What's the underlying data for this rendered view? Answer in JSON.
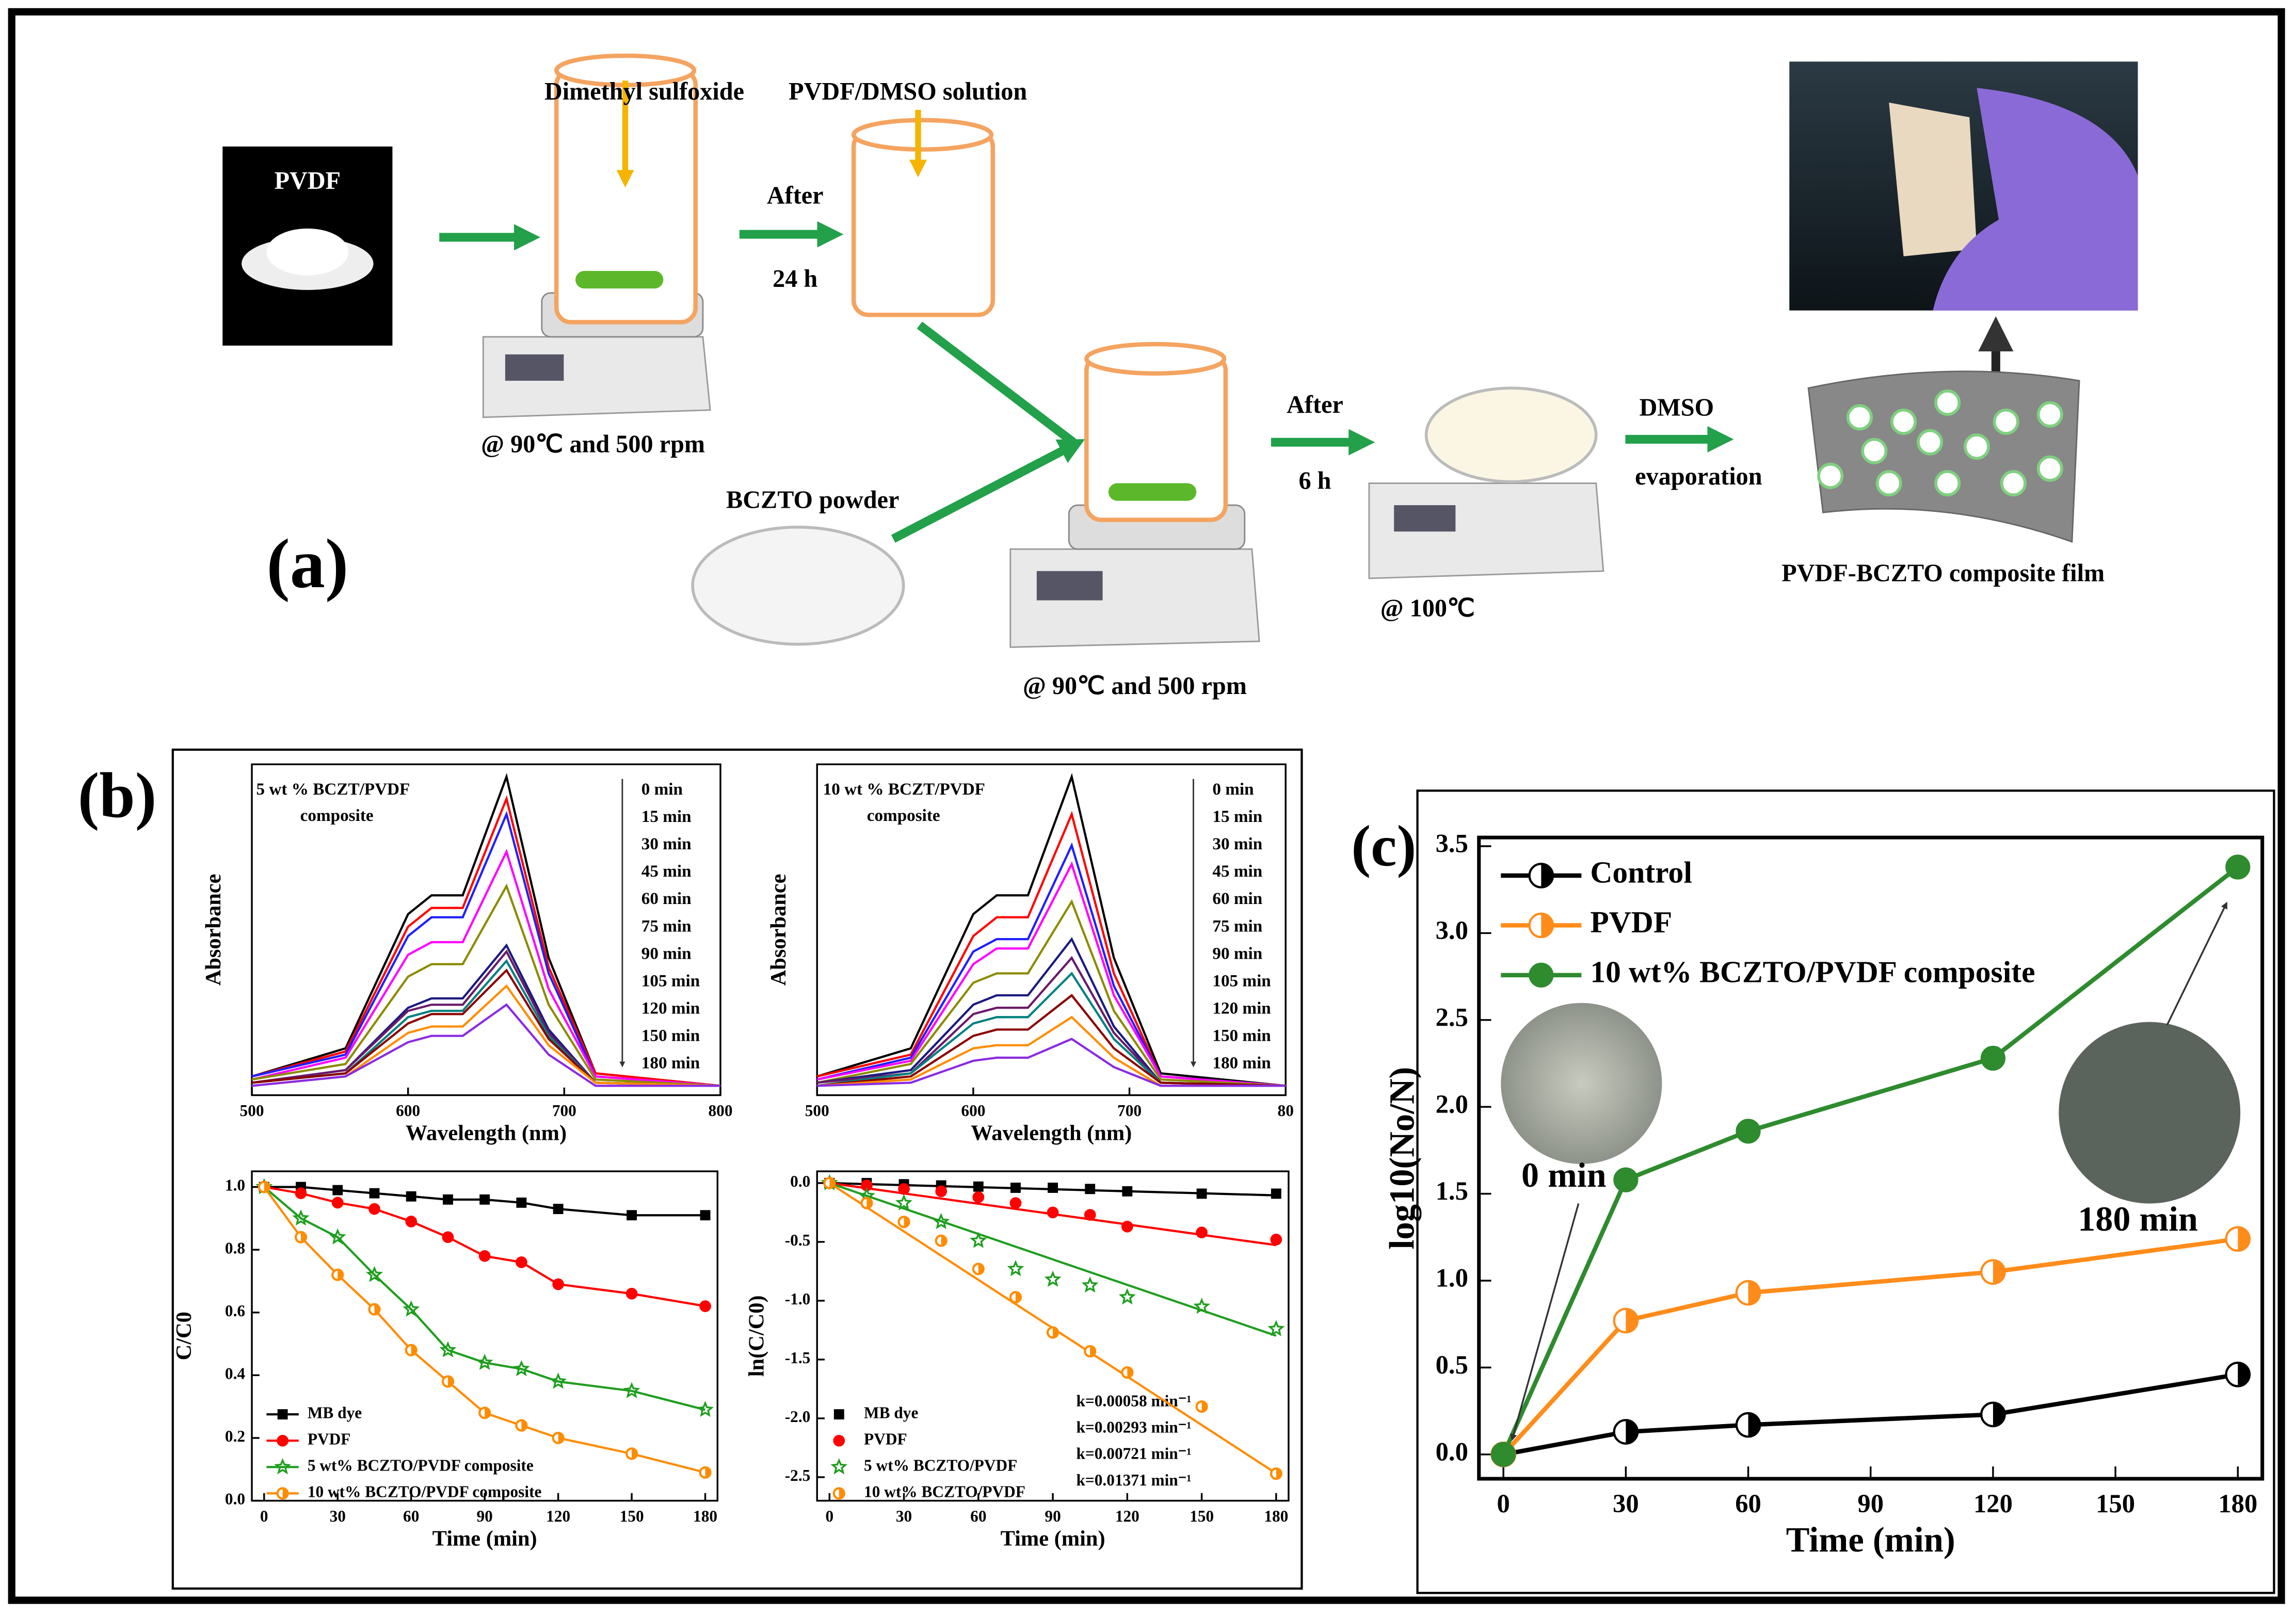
{
  "diagram": {
    "panel_label": "(a)",
    "pvdf": "PVDF",
    "solvent": "Dimethyl sulfoxide",
    "solution": "PVDF/DMSO solution",
    "after_1": "After",
    "time_1": "24 h",
    "condition_1": "@ 90℃ and 500 rpm",
    "powder": "BCZTO powder",
    "condition_2": "@ 90℃ and 500 rpm",
    "after_2": "After",
    "time_2": "6 h",
    "condition_3": "@ 100℃",
    "dmso": "DMSO",
    "evaporation": "evaporation",
    "film": "PVDF-BCZTO composite film"
  },
  "panel_b_label": "(b)",
  "chart_data": [
    {
      "type": "line",
      "annotation": [
        "5 wt % BCZT/PVDF",
        "composite"
      ],
      "xlabel": "Wavelength (nm)",
      "ylabel": "Absorbance",
      "x": [
        500,
        560,
        600,
        615,
        635,
        663,
        690,
        720,
        800
      ],
      "xlim": [
        500,
        800
      ],
      "xticks": [
        500,
        600,
        700,
        800
      ],
      "ylim": [
        -0.02,
        1.04
      ],
      "legend": "list",
      "series": [
        {
          "name": "0 min",
          "color": "#000000",
          "values": [
            0.04,
            0.13,
            0.56,
            0.62,
            0.62,
            1.0,
            0.42,
            0.05,
            0.01
          ]
        },
        {
          "name": "15 min",
          "color": "#ff0000",
          "values": [
            0.04,
            0.12,
            0.52,
            0.58,
            0.58,
            0.93,
            0.39,
            0.05,
            0.01
          ]
        },
        {
          "name": "30 min",
          "color": "#1f1fff",
          "values": [
            0.04,
            0.11,
            0.49,
            0.55,
            0.55,
            0.88,
            0.37,
            0.04,
            0.01
          ]
        },
        {
          "name": "45 min",
          "color": "#ff00ff",
          "values": [
            0.03,
            0.1,
            0.43,
            0.47,
            0.47,
            0.76,
            0.32,
            0.04,
            0.01
          ]
        },
        {
          "name": "60 min",
          "color": "#8b8b00",
          "values": [
            0.03,
            0.08,
            0.36,
            0.4,
            0.4,
            0.65,
            0.27,
            0.03,
            0.01
          ]
        },
        {
          "name": "75 min",
          "color": "#1a1a80",
          "values": [
            0.02,
            0.06,
            0.26,
            0.29,
            0.29,
            0.46,
            0.19,
            0.02,
            0.01
          ]
        },
        {
          "name": "90 min",
          "color": "#6a1a6a",
          "values": [
            0.02,
            0.06,
            0.25,
            0.27,
            0.27,
            0.44,
            0.18,
            0.02,
            0.01
          ]
        },
        {
          "name": "105 min",
          "color": "#008080",
          "values": [
            0.02,
            0.05,
            0.23,
            0.25,
            0.25,
            0.41,
            0.17,
            0.02,
            0.01
          ]
        },
        {
          "name": "120 min",
          "color": "#8b0000",
          "values": [
            0.02,
            0.05,
            0.21,
            0.24,
            0.24,
            0.38,
            0.16,
            0.02,
            0.01
          ]
        },
        {
          "name": "150 min",
          "color": "#ff8c00",
          "values": [
            0.01,
            0.04,
            0.18,
            0.2,
            0.2,
            0.33,
            0.14,
            0.02,
            0.01
          ]
        },
        {
          "name": "180 min",
          "color": "#8a2be2",
          "values": [
            0.01,
            0.04,
            0.15,
            0.17,
            0.17,
            0.27,
            0.11,
            0.01,
            0.01
          ]
        }
      ]
    },
    {
      "type": "line",
      "annotation": [
        "10 wt % BCZT/PVDF",
        "composite"
      ],
      "xlabel": "Wavelength (nm)",
      "ylabel": "Absorbance",
      "x": [
        500,
        560,
        600,
        615,
        635,
        663,
        690,
        720,
        800
      ],
      "xlim": [
        500,
        800
      ],
      "xticks": [
        500,
        600,
        700,
        {
          "value": 800,
          "label": "80"
        }
      ],
      "ylim": [
        -0.02,
        1.04
      ],
      "legend": "list",
      "series": [
        {
          "name": "0 min",
          "color": "#000000",
          "values": [
            0.04,
            0.13,
            0.56,
            0.62,
            0.62,
            1.0,
            0.42,
            0.05,
            0.01
          ]
        },
        {
          "name": "15 min",
          "color": "#ff0000",
          "values": [
            0.04,
            0.11,
            0.49,
            0.55,
            0.55,
            0.88,
            0.37,
            0.04,
            0.01
          ]
        },
        {
          "name": "30 min",
          "color": "#1f1fff",
          "values": [
            0.03,
            0.1,
            0.44,
            0.48,
            0.48,
            0.78,
            0.33,
            0.04,
            0.01
          ]
        },
        {
          "name": "45 min",
          "color": "#ff00ff",
          "values": [
            0.03,
            0.09,
            0.4,
            0.45,
            0.45,
            0.72,
            0.3,
            0.04,
            0.01
          ]
        },
        {
          "name": "60 min",
          "color": "#8b8b00",
          "values": [
            0.02,
            0.08,
            0.34,
            0.37,
            0.37,
            0.6,
            0.25,
            0.03,
            0.01
          ]
        },
        {
          "name": "75 min",
          "color": "#1a1a80",
          "values": [
            0.02,
            0.06,
            0.27,
            0.3,
            0.3,
            0.48,
            0.2,
            0.02,
            0.01
          ]
        },
        {
          "name": "90 min",
          "color": "#6a1a6a",
          "values": [
            0.02,
            0.05,
            0.24,
            0.26,
            0.26,
            0.42,
            0.18,
            0.02,
            0.01
          ]
        },
        {
          "name": "105 min",
          "color": "#008080",
          "values": [
            0.01,
            0.05,
            0.21,
            0.23,
            0.23,
            0.37,
            0.16,
            0.02,
            0.01
          ]
        },
        {
          "name": "120 min",
          "color": "#8b0000",
          "values": [
            0.01,
            0.04,
            0.17,
            0.19,
            0.19,
            0.3,
            0.13,
            0.02,
            0.01
          ]
        },
        {
          "name": "150 min",
          "color": "#ff8c00",
          "values": [
            0.01,
            0.03,
            0.13,
            0.14,
            0.14,
            0.23,
            0.1,
            0.01,
            0.01
          ]
        },
        {
          "name": "180 min",
          "color": "#8a2be2",
          "values": [
            0.01,
            0.02,
            0.09,
            0.1,
            0.1,
            0.16,
            0.07,
            0.01,
            0.01
          ]
        }
      ]
    },
    {
      "type": "line",
      "xlabel": "Time (min)",
      "ylabel": "C/C0",
      "x": [
        0,
        15,
        30,
        45,
        60,
        75,
        90,
        105,
        120,
        150,
        180
      ],
      "xlim": [
        -5,
        185
      ],
      "xticks": [
        0,
        30,
        60,
        90,
        120,
        150,
        180
      ],
      "ylim": [
        0,
        1.05
      ],
      "yticks": [
        {
          "value": 0,
          "label": "0.0"
        },
        0.2,
        0.4,
        0.6,
        0.8,
        {
          "value": 1,
          "label": "1.0"
        }
      ],
      "legend": "lower left",
      "series": [
        {
          "name": "MB dye",
          "color": "#000000",
          "marker": "square",
          "values": [
            1.0,
            1.0,
            0.99,
            0.98,
            0.97,
            0.96,
            0.96,
            0.95,
            0.93,
            0.91,
            0.91
          ]
        },
        {
          "name": "PVDF",
          "color": "#ff0000",
          "marker": "circle",
          "values": [
            1.0,
            0.98,
            0.95,
            0.93,
            0.89,
            0.84,
            0.78,
            0.76,
            0.69,
            0.66,
            0.62
          ]
        },
        {
          "name": "5 wt% BCZTO/PVDF composite",
          "color": "#1f9e1f",
          "marker": "star",
          "values": [
            1.0,
            0.9,
            0.84,
            0.72,
            0.61,
            0.48,
            0.44,
            0.42,
            0.38,
            0.35,
            0.29
          ]
        },
        {
          "name": "10 wt% BCZTO/PVDF composite",
          "color": "#ff8c00",
          "marker": "half",
          "values": [
            1.0,
            0.84,
            0.72,
            0.61,
            0.48,
            0.38,
            0.28,
            0.24,
            0.2,
            0.15,
            0.09
          ]
        }
      ]
    },
    {
      "type": "scatter",
      "xlabel": "Time (min)",
      "ylabel": "ln(C/C0)",
      "x": [
        0,
        15,
        30,
        45,
        60,
        75,
        90,
        105,
        120,
        150,
        180
      ],
      "xlim": [
        -5,
        185
      ],
      "xticks": [
        0,
        30,
        60,
        90,
        120,
        150,
        180
      ],
      "ylim": [
        -2.7,
        0.1
      ],
      "yticks": [
        {
          "value": 0,
          "label": "0.0"
        },
        -0.5,
        {
          "value": -1,
          "label": "-1.0"
        },
        -1.5,
        {
          "value": -2,
          "label": "-2.0"
        },
        -2.5
      ],
      "legend": "lower left",
      "series": [
        {
          "name": "MB dye",
          "color": "#000000",
          "marker": "square",
          "k": 0.00058,
          "k_label": "k=0.00058 min⁻¹",
          "values": [
            0,
            0,
            -0.01,
            -0.02,
            -0.03,
            -0.04,
            -0.04,
            -0.05,
            -0.07,
            -0.09,
            -0.09
          ]
        },
        {
          "name": "PVDF",
          "color": "#ff0000",
          "marker": "circle",
          "k": 0.00293,
          "k_label": "k=0.00293 min⁻¹",
          "values": [
            0,
            -0.02,
            -0.05,
            -0.07,
            -0.12,
            -0.17,
            -0.25,
            -0.27,
            -0.37,
            -0.42,
            -0.48
          ]
        },
        {
          "name": "5 wt% BCZTO/PVDF",
          "color": "#1f9e1f",
          "marker": "star",
          "k": 0.00721,
          "k_label": "k=0.00721 min⁻¹",
          "values": [
            0,
            -0.11,
            -0.17,
            -0.33,
            -0.49,
            -0.73,
            -0.82,
            -0.87,
            -0.97,
            -1.05,
            -1.24
          ]
        },
        {
          "name": "10 wt% BCZTO/PVDF",
          "color": "#ff8c00",
          "marker": "half",
          "k": 0.01371,
          "k_label": "k=0.01371 min⁻¹",
          "values": [
            0,
            -0.17,
            -0.33,
            -0.49,
            -0.73,
            -0.97,
            -1.27,
            -1.43,
            -1.61,
            -1.9,
            -2.47
          ]
        }
      ]
    },
    {
      "type": "line",
      "panel_label": "(c)",
      "xlabel": "Time (min)",
      "ylabel": "log10(No/N)",
      "x": [
        0,
        30,
        60,
        120,
        180
      ],
      "xlim": [
        -6,
        186
      ],
      "xticks": [
        0,
        30,
        60,
        90,
        120,
        150,
        180
      ],
      "ylim": [
        -0.14,
        3.55
      ],
      "yticks": [
        {
          "value": 0,
          "label": "0.0"
        },
        0.5,
        {
          "value": 1,
          "label": "1.0"
        },
        1.5,
        {
          "value": 2,
          "label": "2.0"
        },
        2.5,
        {
          "value": 3,
          "label": "3.0"
        },
        3.5
      ],
      "legend": "upper left",
      "annotations": [
        "0 min",
        "180 min"
      ],
      "series": [
        {
          "name": "Control",
          "color": "#000000",
          "marker": "half",
          "values": [
            0,
            0.13,
            0.17,
            0.23,
            0.46
          ]
        },
        {
          "name": "PVDF",
          "color": "#ff8c1a",
          "marker": "half",
          "values": [
            0,
            0.77,
            0.93,
            1.05,
            1.24
          ]
        },
        {
          "name": "10 wt% BCZTO/PVDF composite",
          "color": "#2e8b2e",
          "marker": "circle",
          "values": [
            0,
            1.58,
            1.86,
            2.28,
            3.38
          ]
        }
      ]
    }
  ]
}
